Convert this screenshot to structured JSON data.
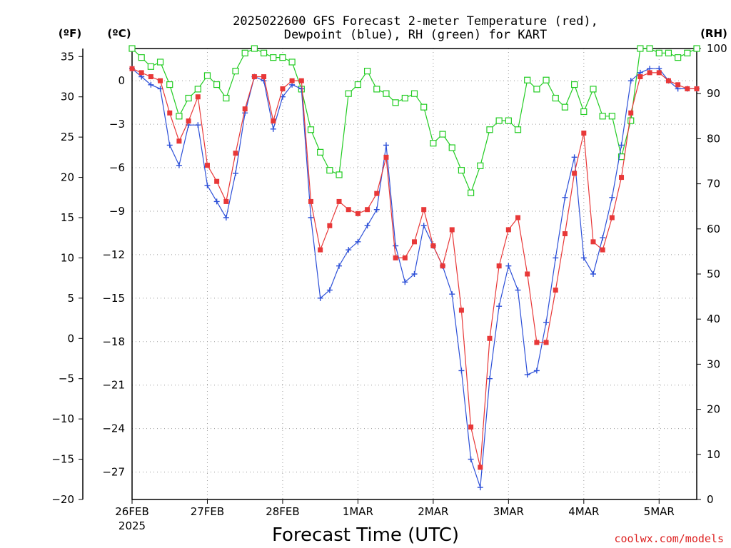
{
  "chart_data": {
    "type": "line",
    "title_lines": [
      "2025022600 GFS Forecast 2-meter Temperature (red),",
      "Dewpoint (blue), RH (green) for KART"
    ],
    "xlabel": "Forecast Time (UTC)",
    "unit_f": "(ºF)",
    "unit_c": "(ºC)",
    "unit_rh": "(RH)",
    "credit": "coolwx.com/models",
    "credit_color": "#dd2222",
    "grid": true,
    "x_unit": "hours since 2025-02-26 00 UTC",
    "xlim": [
      0,
      180
    ],
    "x_tick_positions": [
      0,
      24,
      48,
      72,
      96,
      120,
      144,
      168
    ],
    "x_tick_labels": [
      "26FEB",
      "27FEB",
      "28FEB",
      "1MAR",
      "2MAR",
      "3MAR",
      "4MAR",
      "5MAR"
    ],
    "x_year_label": "2025",
    "y_left_f": {
      "ylim": [
        -20,
        36
      ],
      "ticks": [
        35,
        30,
        25,
        20,
        15,
        10,
        5,
        0,
        -5,
        -10,
        -15,
        -20
      ]
    },
    "y_left_c": {
      "ticks": [
        0,
        -3,
        -6,
        -9,
        -12,
        -15,
        -18,
        -21,
        -24,
        -27
      ]
    },
    "y_right_rh": {
      "ylim": [
        0,
        100
      ],
      "ticks": [
        100,
        90,
        80,
        70,
        60,
        50,
        40,
        30,
        20,
        10,
        0
      ]
    },
    "series": [
      {
        "name": "Temperature",
        "axis": "F",
        "color": "#e83838",
        "marker": "square",
        "x": [
          0,
          3,
          6,
          9,
          12,
          15,
          18,
          21,
          24,
          27,
          30,
          33,
          36,
          39,
          42,
          45,
          48,
          51,
          54,
          57,
          60,
          63,
          66,
          69,
          72,
          75,
          78,
          81,
          84,
          87,
          90,
          93,
          96,
          99,
          102,
          105,
          108,
          111,
          114,
          117,
          120,
          123,
          126,
          129,
          132,
          135,
          138,
          141,
          144,
          147,
          150,
          153,
          156,
          159,
          162,
          165,
          168,
          171,
          174,
          177,
          180
        ],
        "values": [
          33.5,
          33,
          32.5,
          32,
          28,
          24.5,
          27,
          30,
          21.5,
          19.5,
          17,
          23,
          28.5,
          32.5,
          32.5,
          27,
          31,
          32,
          32,
          17,
          11,
          14,
          17,
          16,
          15.5,
          16,
          18,
          22.5,
          10,
          10,
          12,
          16,
          11.5,
          9,
          13.5,
          3.5,
          -11,
          -16,
          0,
          9,
          13.5,
          15,
          8,
          -0.5,
          -0.5,
          6,
          13,
          20.5,
          25.5,
          12,
          11,
          15,
          20,
          28,
          32.5,
          33,
          33,
          32,
          31.5,
          31,
          31
        ],
        "y_note": "values in °F (left axis)"
      },
      {
        "name": "Dewpoint",
        "axis": "F",
        "color": "#2d50d8",
        "marker": "plus",
        "x": [
          0,
          3,
          6,
          9,
          12,
          15,
          18,
          21,
          24,
          27,
          30,
          33,
          36,
          39,
          42,
          45,
          48,
          51,
          54,
          57,
          60,
          63,
          66,
          69,
          72,
          75,
          78,
          81,
          84,
          87,
          90,
          93,
          96,
          99,
          102,
          105,
          108,
          111,
          114,
          117,
          120,
          123,
          126,
          129,
          132,
          135,
          138,
          141,
          144,
          147,
          150,
          153,
          156,
          159,
          162,
          165,
          168,
          171,
          174,
          177,
          180
        ],
        "values": [
          33.5,
          32.5,
          31.5,
          31,
          24,
          21.5,
          26.5,
          26.5,
          19,
          17,
          15,
          20.5,
          28,
          32.5,
          32,
          26,
          30,
          31.5,
          31,
          15,
          5,
          6,
          9,
          11,
          12,
          14,
          16,
          24,
          11.5,
          7,
          8,
          14,
          11.5,
          9,
          5.5,
          -4,
          -15,
          -18.5,
          -5,
          4,
          9,
          6,
          -4.5,
          -4,
          2,
          10,
          17.5,
          22.5,
          10,
          8,
          12.5,
          17.5,
          24,
          32,
          33,
          33.5,
          33.5,
          32,
          31,
          31,
          31
        ],
        "y_note": "values in °F (left axis)"
      },
      {
        "name": "RH",
        "axis": "RH",
        "color": "#22cc22",
        "marker": "open-square",
        "x": [
          0,
          3,
          6,
          9,
          12,
          15,
          18,
          21,
          24,
          27,
          30,
          33,
          36,
          39,
          42,
          45,
          48,
          51,
          54,
          57,
          60,
          63,
          66,
          69,
          72,
          75,
          78,
          81,
          84,
          87,
          90,
          93,
          96,
          99,
          102,
          105,
          108,
          111,
          114,
          117,
          120,
          123,
          126,
          129,
          132,
          135,
          138,
          141,
          144,
          147,
          150,
          153,
          156,
          159,
          162,
          165,
          168,
          171,
          174,
          177,
          180
        ],
        "values": [
          100,
          98,
          96,
          97,
          92,
          85,
          89,
          91,
          94,
          92,
          89,
          95,
          99,
          100,
          99,
          98,
          98,
          97,
          91,
          82,
          77,
          73,
          72,
          90,
          92,
          95,
          91,
          90,
          88,
          89,
          90,
          87,
          79,
          81,
          78,
          73,
          68,
          74,
          82,
          84,
          84,
          82,
          93,
          91,
          93,
          89,
          87,
          92,
          86,
          91,
          85,
          85,
          76,
          84,
          100,
          100,
          99,
          99,
          98,
          99,
          100
        ],
        "y_note": "values in % (right axis)"
      }
    ]
  }
}
